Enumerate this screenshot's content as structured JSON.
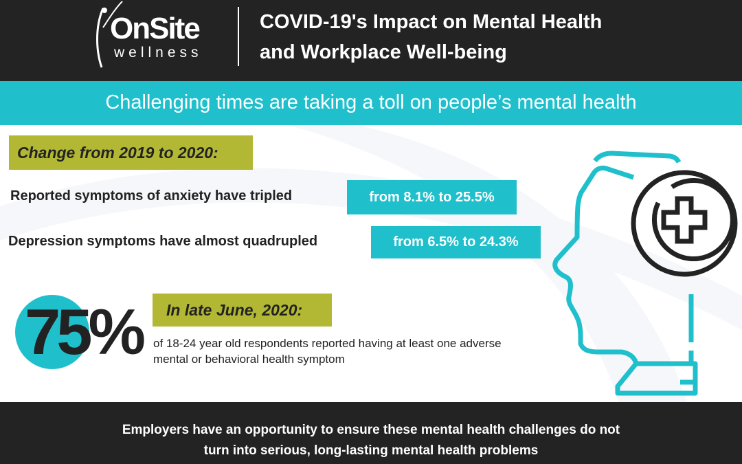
{
  "header": {
    "logo_main": "OnSite",
    "logo_sub": "wellness",
    "title_line1": "COVID-19's Impact on Mental Health",
    "title_line2": "and Workplace Well-being"
  },
  "banner": "Challenging times are taking a toll on people’s mental health",
  "change_section": {
    "label": "Change from 2019 to 2020:",
    "stats": [
      {
        "text": "Reported symptoms of anxiety have tripled",
        "value": "from 8.1% to 25.5%"
      },
      {
        "text": "Depression symptoms have almost quadrupled",
        "value": "from 6.5% to 24.3%"
      }
    ]
  },
  "june_section": {
    "big_number": "75%",
    "label": "In late June, 2020:",
    "description": "of 18-24 year old respondents reported having at least one adverse mental or behavioral health symptom"
  },
  "footer": {
    "line1": "Employers have an opportunity to ensure these mental health challenges do not",
    "line2": "turn into serious, long-lasting mental health problems"
  },
  "colors": {
    "dark": "#232323",
    "teal": "#1fbfcc",
    "olive": "#b2b834"
  }
}
